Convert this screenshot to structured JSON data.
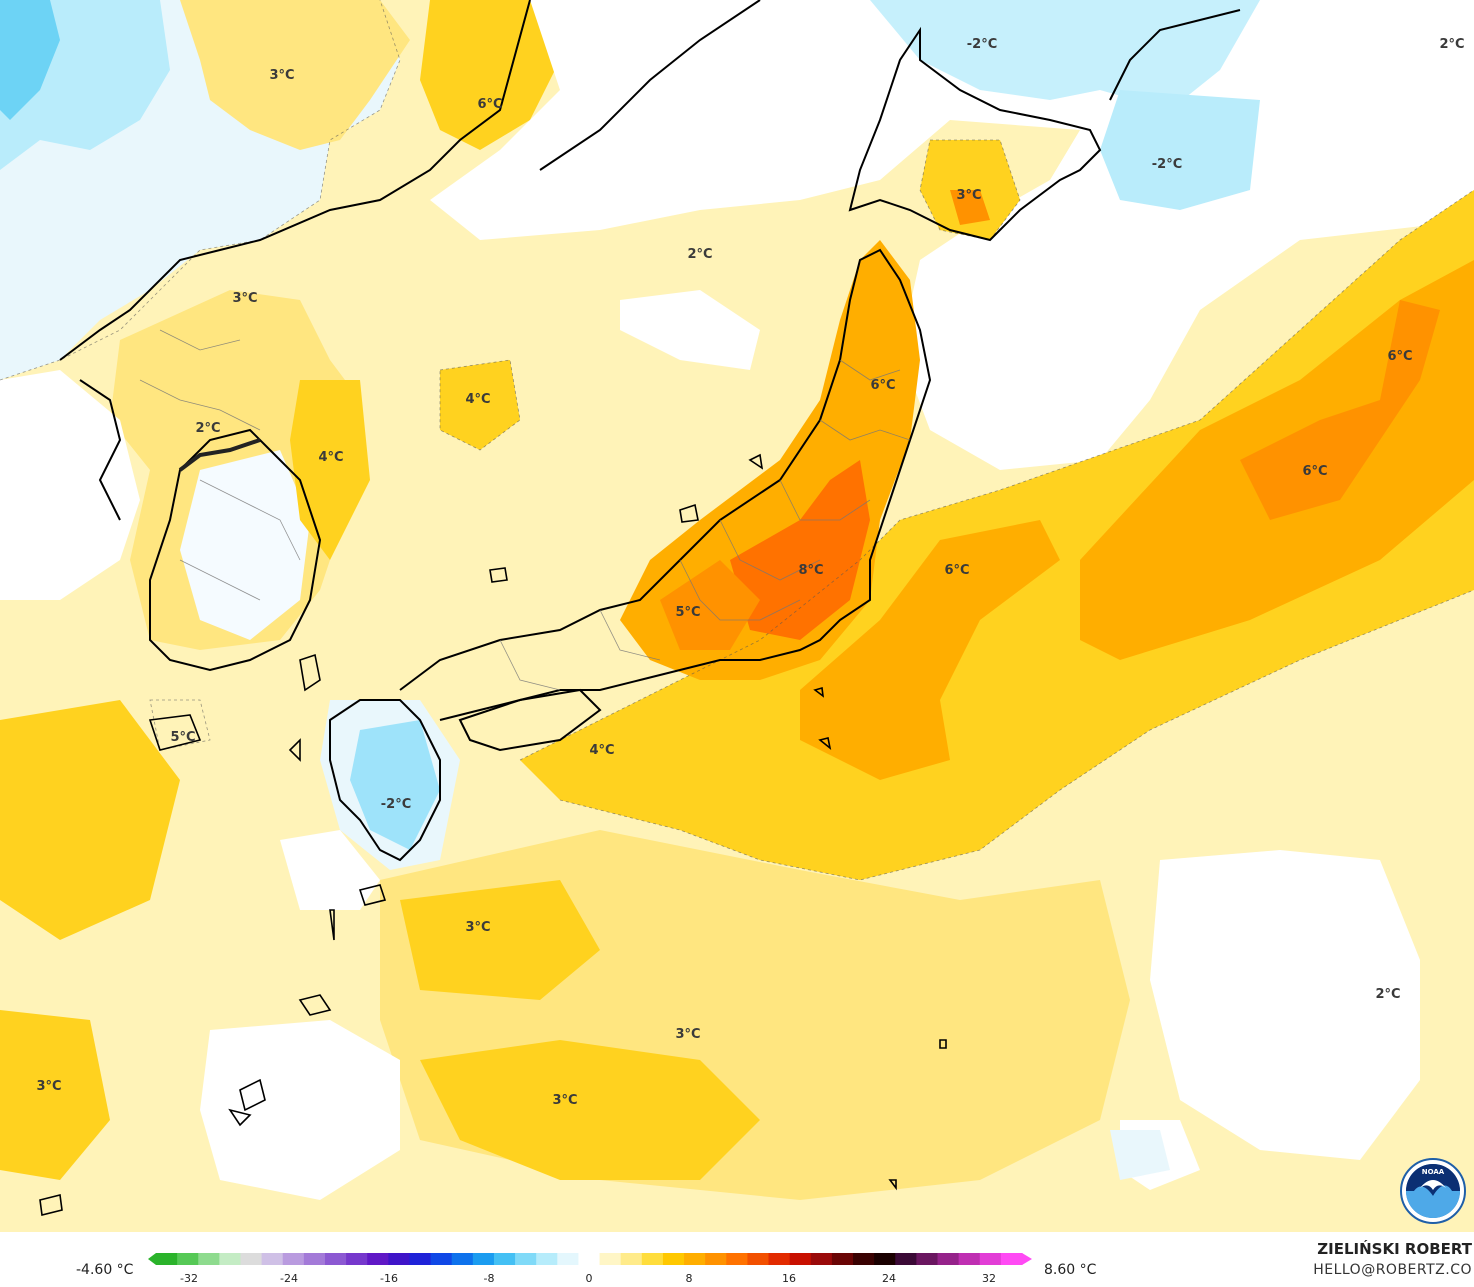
{
  "map": {
    "labels": [
      "3°C",
      "6°C",
      "-2°C",
      "2°C",
      "3°C",
      "-2°C",
      "2°C",
      "3°C",
      "6°C",
      "4°C",
      "6°C",
      "2°C",
      "4°C",
      "6°C",
      "8°C",
      "6°C",
      "5°C",
      "5°C",
      "4°C",
      "-2°C",
      "3°C",
      "2°C",
      "3°C",
      "3°C",
      "3°C"
    ]
  },
  "legend": {
    "min_value": "-4.60 °C",
    "max_value": "8.60 °C",
    "ticks": [
      "-32",
      "-24",
      "-16",
      "-8",
      "0",
      "8",
      "16",
      "24",
      "32"
    ],
    "colors": [
      "#2bb32b",
      "#56c956",
      "#8edb8e",
      "#c4ecc4",
      "#dcdcdc",
      "#cfc0e6",
      "#b99bdf",
      "#a37ad8",
      "#8c59d2",
      "#7638cc",
      "#6018c6",
      "#3f14c8",
      "#1f22d8",
      "#1048e6",
      "#0e72ec",
      "#1b9cf0",
      "#44c0f4",
      "#80daf8",
      "#b6ecfb",
      "#e4f7fd",
      "#ffffff",
      "#fff6c6",
      "#ffeb8a",
      "#ffdd3c",
      "#ffc800",
      "#ffae00",
      "#ff9200",
      "#ff7200",
      "#f25000",
      "#e22b00",
      "#c81000",
      "#9a0a0a",
      "#6a0505",
      "#3a0202",
      "#1a0000",
      "#3b0a36",
      "#6a1660",
      "#95228a",
      "#bf2fb2",
      "#e23dd6",
      "#ff4af4"
    ]
  },
  "author": {
    "name": "ZIELIŃSKI ROBERT",
    "email": "HELLO@ROBERTZ.CO"
  },
  "logo_text": "NOAA"
}
